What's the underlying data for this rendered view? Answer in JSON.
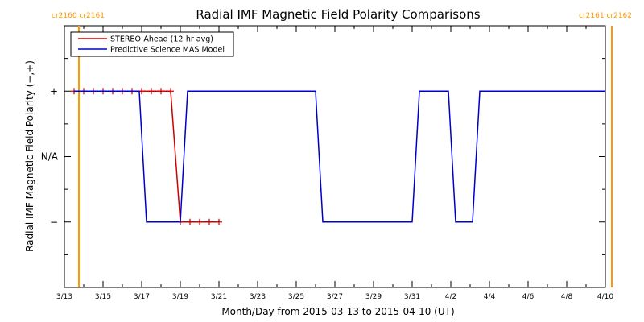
{
  "chart_data": {
    "type": "line",
    "title": "Radial IMF Magnetic Field Polarity Comparisons",
    "xlabel": "Month/Day from 2015-03-13 to 2015-04-10 (UT)",
    "ylabel": "Radial IMF Magnetic Field Polarity (−,+)",
    "x_tick_labels": [
      "3/13",
      "3/15",
      "3/17",
      "3/19",
      "3/21",
      "3/23",
      "3/25",
      "3/27",
      "3/29",
      "3/31",
      "4/2",
      "4/4",
      "4/6",
      "4/8",
      "4/10"
    ],
    "xlim": [
      "2015-03-13",
      "2015-04-10"
    ],
    "y_categories": [
      "−",
      "N/A",
      "+"
    ],
    "ylim": [
      -2,
      2
    ],
    "carrington_markers": [
      {
        "date": "2015-03-13 18:00",
        "label": "cr2160 cr2161",
        "side": "left"
      },
      {
        "date": "2015-04-10 08:00",
        "label": "cr2161 cr2162",
        "side": "right"
      }
    ],
    "legend": {
      "placement": "top-left"
    },
    "series": [
      {
        "name": "STEREO-Ahead (12-hr avg)",
        "color": "#cc0000",
        "marker": "plus",
        "x": [
          "2015-03-13 12:00",
          "2015-03-14 00:00",
          "2015-03-14 12:00",
          "2015-03-15 00:00",
          "2015-03-15 12:00",
          "2015-03-16 00:00",
          "2015-03-16 12:00",
          "2015-03-17 00:00",
          "2015-03-17 12:00",
          "2015-03-18 00:00",
          "2015-03-18 12:00",
          "2015-03-19 00:00",
          "2015-03-19 12:00",
          "2015-03-20 00:00",
          "2015-03-20 12:00",
          "2015-03-21 00:00"
        ],
        "y": [
          1,
          1,
          1,
          1,
          1,
          1,
          1,
          1,
          1,
          1,
          1,
          -1,
          -1,
          -1,
          -1,
          -1
        ]
      },
      {
        "name": "Predictive Science MAS Model",
        "color": "#0000cc",
        "marker": "none",
        "x": [
          "2015-03-13 12:00",
          "2015-03-16 21:00",
          "2015-03-17 06:00",
          "2015-03-19 00:00",
          "2015-03-19 09:00",
          "2015-03-26 00:00",
          "2015-03-26 09:00",
          "2015-03-31 00:00",
          "2015-03-31 09:00",
          "2015-04-01 21:00",
          "2015-04-02 06:00",
          "2015-04-03 03:00",
          "2015-04-03 12:00",
          "2015-04-10 00:00"
        ],
        "y": [
          1,
          1,
          -1,
          -1,
          1,
          1,
          -1,
          -1,
          1,
          1,
          -1,
          -1,
          1,
          1
        ]
      }
    ]
  }
}
